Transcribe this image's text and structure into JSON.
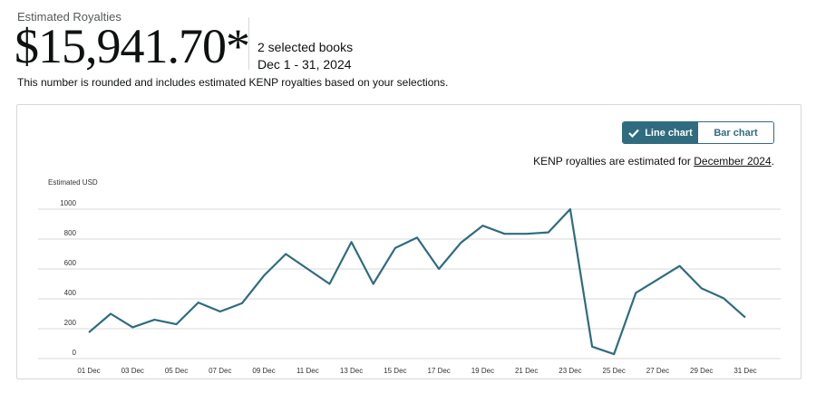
{
  "header": {
    "eyebrow": "Estimated Royalties",
    "amount": "$15,941.70*",
    "books": "2 selected books",
    "range": "Dec 1 - 31, 2024",
    "note": "This number is rounded and includes estimated KENP royalties based on your selections."
  },
  "controls": {
    "line_label": "Line chart",
    "bar_label": "Bar chart",
    "active": "line"
  },
  "kenp": {
    "prefix": "KENP royalties are estimated for ",
    "month": "December 2024",
    "suffix": "."
  },
  "colors": {
    "line": "#2f6c7f",
    "grid": "#d9d9d9",
    "accent": "#2f6c7f"
  },
  "chart_data": {
    "type": "line",
    "ylabel": "Estimated USD",
    "ylim": [
      0,
      1000
    ],
    "yticks": [
      0,
      200,
      400,
      600,
      800,
      1000
    ],
    "grid": true,
    "x": [
      "01 Dec",
      "02 Dec",
      "03 Dec",
      "04 Dec",
      "05 Dec",
      "06 Dec",
      "07 Dec",
      "08 Dec",
      "09 Dec",
      "10 Dec",
      "11 Dec",
      "12 Dec",
      "13 Dec",
      "14 Dec",
      "15 Dec",
      "16 Dec",
      "17 Dec",
      "18 Dec",
      "19 Dec",
      "20 Dec",
      "21 Dec",
      "22 Dec",
      "23 Dec",
      "24 Dec",
      "25 Dec",
      "26 Dec",
      "27 Dec",
      "28 Dec",
      "29 Dec",
      "30 Dec",
      "31 Dec"
    ],
    "xtick_labels": [
      "01 Dec",
      "03 Dec",
      "05 Dec",
      "07 Dec",
      "09 Dec",
      "11 Dec",
      "13 Dec",
      "15 Dec",
      "17 Dec",
      "19 Dec",
      "21 Dec",
      "23 Dec",
      "25 Dec",
      "27 Dec",
      "29 Dec",
      "31 Dec"
    ],
    "series": [
      {
        "values": [
          175,
          300,
          210,
          260,
          230,
          375,
          315,
          370,
          555,
          700,
          600,
          500,
          780,
          500,
          740,
          810,
          600,
          775,
          890,
          835,
          835,
          845,
          1000,
          80,
          30,
          440,
          530,
          620,
          470,
          405,
          275
        ]
      }
    ]
  }
}
